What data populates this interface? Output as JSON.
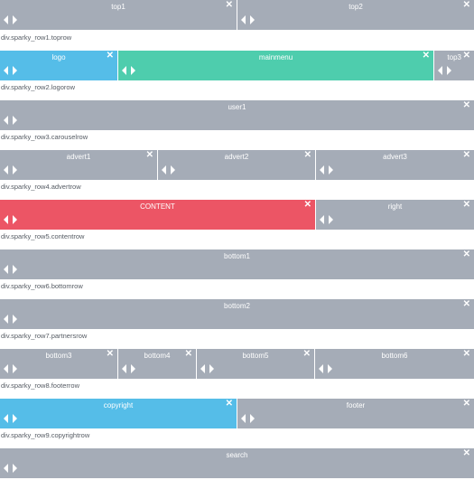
{
  "colors": {
    "gray": "#a5acb7",
    "blue": "#55bde8",
    "green": "#4ecdad",
    "red": "#ec5565",
    "text": "#ffffff",
    "label": "#555b63"
  },
  "icons": {
    "close": "close-icon",
    "move_left": "arrow-left-icon",
    "move_right": "arrow-right-icon"
  },
  "close_glyph": "✕",
  "rows": [
    {
      "label": "div.sparky_row1.toprow",
      "cells": [
        {
          "title": "top1"
        },
        {
          "title": "top2"
        }
      ]
    },
    {
      "label": "div.sparky_row2.logorow",
      "cells": [
        {
          "title": "logo"
        },
        {
          "title": "mainmenu"
        },
        {
          "title": "top3"
        }
      ]
    },
    {
      "label": "div.sparky_row3.carouselrow",
      "cells": [
        {
          "title": "user1"
        }
      ]
    },
    {
      "label": "div.sparky_row4.advertrow",
      "cells": [
        {
          "title": "advert1"
        },
        {
          "title": "advert2"
        },
        {
          "title": "advert3"
        }
      ]
    },
    {
      "label": "div.sparky_row5.contentrow",
      "cells": [
        {
          "title": "CONTENT"
        },
        {
          "title": "right"
        }
      ]
    },
    {
      "label": "div.sparky_row6.bottomrow",
      "cells": [
        {
          "title": "bottom1"
        }
      ]
    },
    {
      "label": "div.sparky_row7.partnersrow",
      "cells": [
        {
          "title": "bottom2"
        }
      ]
    },
    {
      "label": "div.sparky_row8.footerrow",
      "cells": [
        {
          "title": "bottom3"
        },
        {
          "title": "bottom4"
        },
        {
          "title": "bottom5"
        },
        {
          "title": "bottom6"
        }
      ]
    },
    {
      "label": "div.sparky_row9.copyrightrow",
      "cells": [
        {
          "title": "copyright"
        },
        {
          "title": "footer"
        }
      ]
    },
    {
      "label": "",
      "cells": [
        {
          "title": "search"
        }
      ]
    }
  ]
}
